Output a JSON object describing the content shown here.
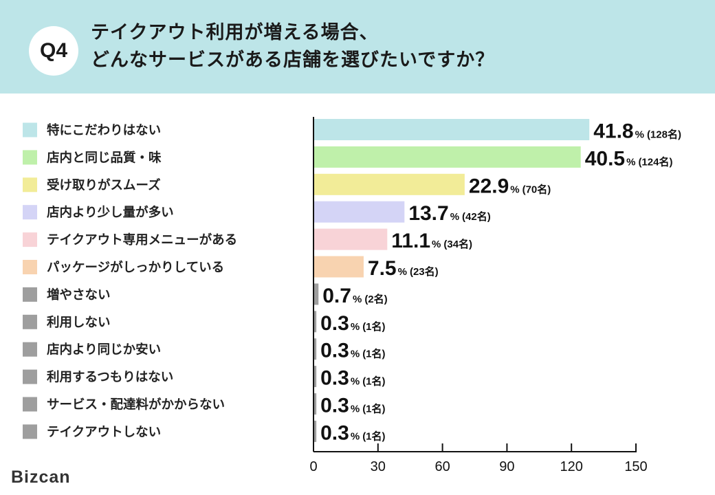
{
  "header": {
    "badge": "Q4",
    "title_line1": "テイクアウト利用が増える場合、",
    "title_line2": "どんなサービスがある店舗を選びたいですか？",
    "bg_color": "#bde5e8"
  },
  "logo": "Bizcan",
  "chart_data": {
    "type": "bar",
    "orientation": "horizontal",
    "categories": [
      "特にこだわりはない",
      "店内と同じ品質・味",
      "受け取りがスムーズ",
      "店内より少し量が多い",
      "テイクアウト専用メニューがある",
      "パッケージがしっかりしている",
      "増やさない",
      "利用しない",
      "店内より同じか安い",
      "利用するつもりはない",
      "サービス・配達料がかからない",
      "テイクアウトしない"
    ],
    "values": [
      128,
      124,
      70,
      42,
      34,
      23,
      2,
      1,
      1,
      1,
      1,
      1
    ],
    "percents": [
      "41.8",
      "40.5",
      "22.9",
      "13.7",
      "11.1",
      "7.5",
      "0.7",
      "0.3",
      "0.3",
      "0.3",
      "0.3",
      "0.3"
    ],
    "count_labels": [
      "(128名)",
      "(124名)",
      "(70名)",
      "(42名)",
      "(34名)",
      "(23名)",
      "(2名)",
      "(1名)",
      "(1名)",
      "(1名)",
      "(1名)",
      "(1名)"
    ],
    "percent_sign": "%",
    "colors": [
      "#bde5e8",
      "#bff0aa",
      "#f2ec98",
      "#d4d4f6",
      "#f8d3d7",
      "#f8d3b0",
      "#9e9e9e",
      "#9e9e9e",
      "#9e9e9e",
      "#9e9e9e",
      "#9e9e9e",
      "#9e9e9e"
    ],
    "xlim": [
      0,
      150
    ],
    "xticks": [
      0,
      30,
      60,
      90,
      120,
      150
    ],
    "legend": "left",
    "grid": false
  }
}
